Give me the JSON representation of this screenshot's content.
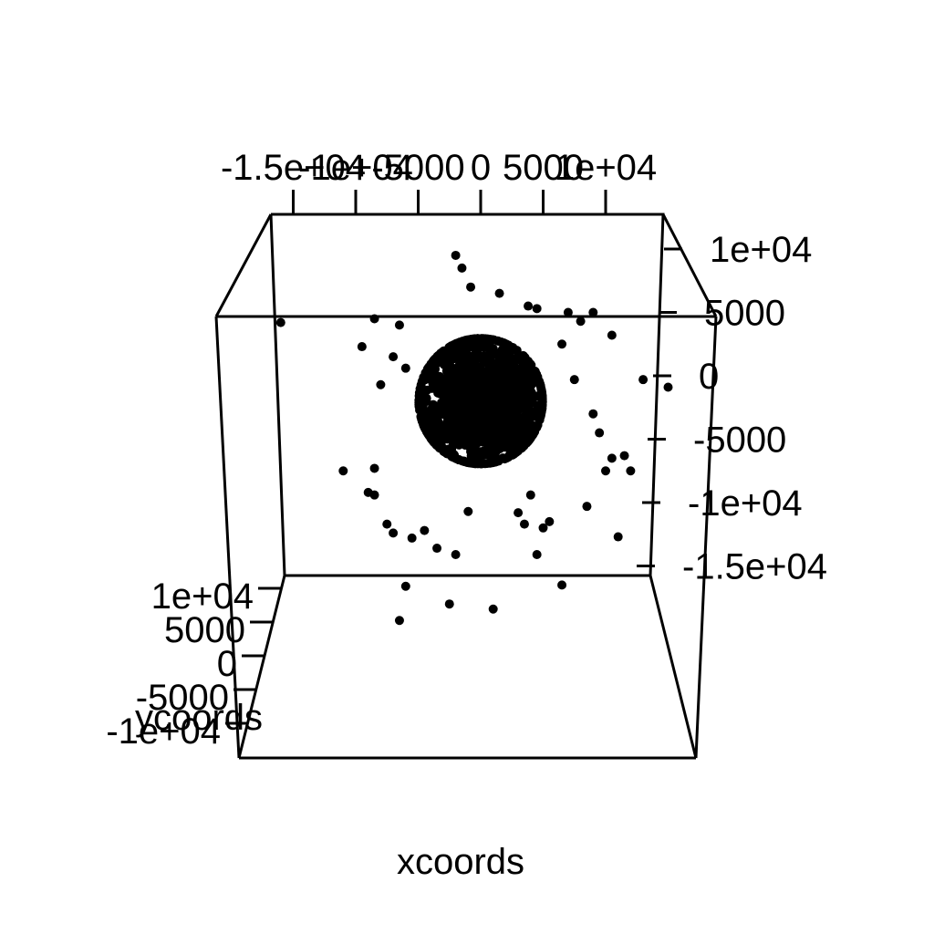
{
  "chart_data": {
    "type": "scatter",
    "xlabel": "xcoords",
    "ylabel": "ycoords",
    "zlabel": "",
    "x_ticks": [
      "-1.5e+04",
      "-1e+04",
      "-5000",
      "0",
      "5000",
      "1e+04"
    ],
    "y_ticks": [
      "-1e+04",
      "-5000",
      "0",
      "5000",
      "1e+04"
    ],
    "z_ticks": [
      "1e+04",
      "5000",
      "0",
      "-5000",
      "-1e+04",
      "-1.5e+04"
    ],
    "xlim": [
      -17000,
      14000
    ],
    "ylim": [
      -12000,
      12000
    ],
    "zlim": [
      -17000,
      12000
    ],
    "grid": false,
    "legend": "none",
    "outliers": [
      {
        "x": -2000,
        "z": 9500
      },
      {
        "x": -1500,
        "z": 8500
      },
      {
        "x": -800,
        "z": 7000
      },
      {
        "x": 1500,
        "z": 6500
      },
      {
        "x": 3800,
        "z": 5500
      },
      {
        "x": 4500,
        "z": 5300
      },
      {
        "x": 7000,
        "z": 5000
      },
      {
        "x": 8000,
        "z": 4300
      },
      {
        "x": 9000,
        "z": 5000
      },
      {
        "x": -8500,
        "z": 4500
      },
      {
        "x": -6500,
        "z": 4000
      },
      {
        "x": -16000,
        "z": 4200
      },
      {
        "x": -9500,
        "z": 2300
      },
      {
        "x": -7000,
        "z": 1500
      },
      {
        "x": -6000,
        "z": 600
      },
      {
        "x": -8000,
        "z": -700
      },
      {
        "x": 6500,
        "z": 2500
      },
      {
        "x": 7500,
        "z": -300
      },
      {
        "x": 13000,
        "z": -300
      },
      {
        "x": 15000,
        "z": -900
      },
      {
        "x": 10500,
        "z": 3200
      },
      {
        "x": 9000,
        "z": -3000
      },
      {
        "x": 9500,
        "z": -4500
      },
      {
        "x": 10500,
        "z": -6500
      },
      {
        "x": 11500,
        "z": -6300
      },
      {
        "x": 12000,
        "z": -7500
      },
      {
        "x": 10000,
        "z": -7500
      },
      {
        "x": -11000,
        "z": -7500
      },
      {
        "x": -8500,
        "z": -7300
      },
      {
        "x": -9000,
        "z": -9200
      },
      {
        "x": -8500,
        "z": -9400
      },
      {
        "x": -7500,
        "z": -11700
      },
      {
        "x": -7000,
        "z": -12400
      },
      {
        "x": -5500,
        "z": -12800
      },
      {
        "x": -4500,
        "z": -12200
      },
      {
        "x": -3500,
        "z": -13600
      },
      {
        "x": -1000,
        "z": -10700
      },
      {
        "x": 3000,
        "z": -10800
      },
      {
        "x": 3500,
        "z": -11700
      },
      {
        "x": 4000,
        "z": -9400
      },
      {
        "x": 5500,
        "z": -11500
      },
      {
        "x": 8500,
        "z": -10300
      },
      {
        "x": 5000,
        "z": -12000
      },
      {
        "x": 11000,
        "z": -12700
      },
      {
        "x": 4500,
        "z": -14100
      },
      {
        "x": -2000,
        "z": -14100
      },
      {
        "x": -6000,
        "z": -16600
      },
      {
        "x": 6500,
        "z": -16500
      },
      {
        "x": -2500,
        "z": -18000
      },
      {
        "x": 1000,
        "z": -18400
      },
      {
        "x": -6500,
        "z": -19300
      }
    ],
    "core": {
      "center_x": 0,
      "center_z": -2000,
      "spread_x": 2600,
      "spread_z": 2600,
      "count": 1400
    }
  }
}
